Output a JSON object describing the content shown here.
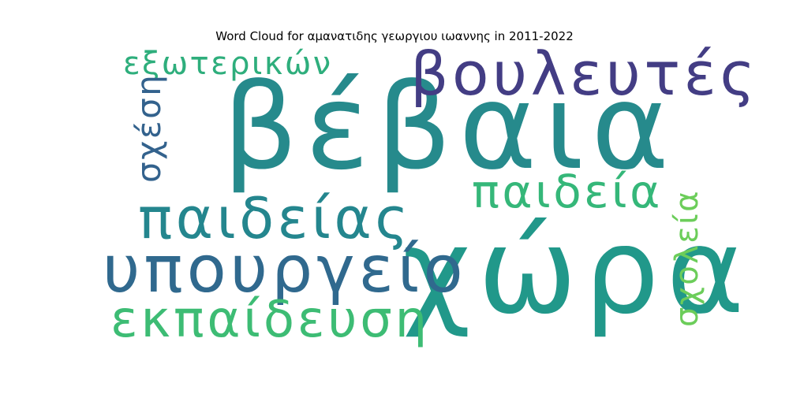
{
  "title": "Word Cloud for αμανατιδης γεωργιου ιωαννης in 2011-2022",
  "words": [
    {
      "text": "βέβαια",
      "color": "#268a8c"
    },
    {
      "text": "χώρα",
      "color": "#21988a"
    },
    {
      "text": "βουλευτές",
      "color": "#433d84"
    },
    {
      "text": "υπουργείο",
      "color": "#30698e"
    },
    {
      "text": "παιδείας",
      "color": "#24868e"
    },
    {
      "text": "παιδεία",
      "color": "#35b779"
    },
    {
      "text": "εκπαίδευση",
      "color": "#3dbc74"
    },
    {
      "text": "εξωτερικών",
      "color": "#2eae7c"
    },
    {
      "text": "σχέση",
      "color": "#33628d"
    },
    {
      "text": "σχολεία",
      "color": "#6ccd5a"
    }
  ]
}
